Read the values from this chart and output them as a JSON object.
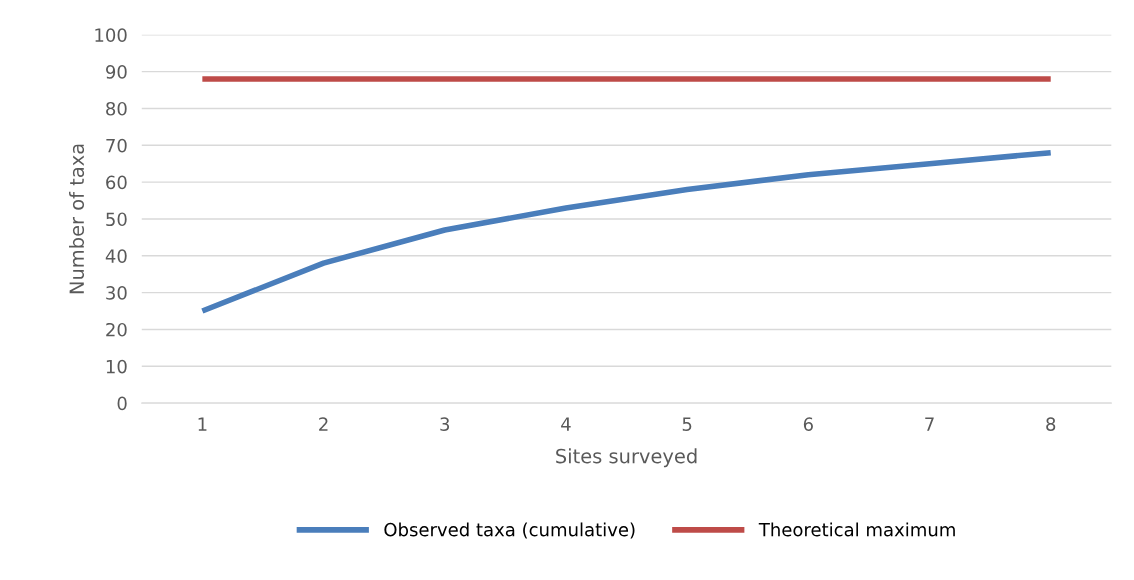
{
  "chart_data": {
    "type": "line",
    "xlabel": "Sites surveyed",
    "ylabel": "Number of taxa",
    "categories": [
      "1",
      "2",
      "3",
      "4",
      "5",
      "6",
      "7",
      "8"
    ],
    "series": [
      {
        "name": "Observed taxa (cumulative)",
        "color": "#4a7ebb",
        "values": [
          25,
          38,
          47,
          53,
          58,
          62,
          65,
          68
        ]
      },
      {
        "name": "Theoretical maximum",
        "color": "#be4b48",
        "values": [
          88,
          88,
          88,
          88,
          88,
          88,
          88,
          88
        ]
      }
    ],
    "ylim": [
      0,
      100
    ],
    "yticks": [
      0,
      10,
      20,
      30,
      40,
      50,
      60,
      70,
      80,
      90,
      100
    ],
    "grid": "y",
    "legend": "bottom",
    "marker": "none",
    "line_style": "solid"
  }
}
